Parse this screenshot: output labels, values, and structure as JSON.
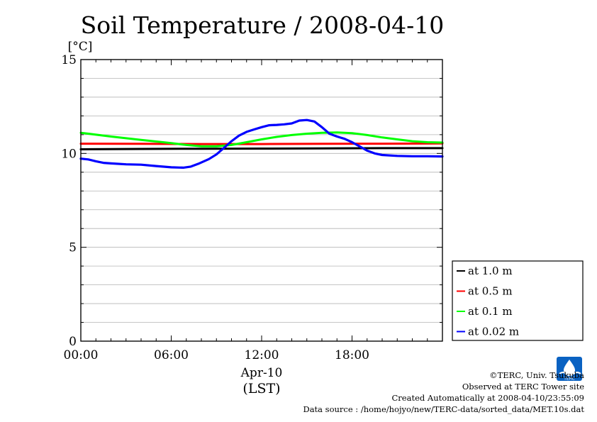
{
  "chart_data": {
    "type": "line",
    "title": "Soil Temperature / 2008-04-10",
    "ylabel": "[°C]",
    "xlabel": "Apr-10",
    "xlabel_sub": "(LST)",
    "xlim": [
      0,
      24
    ],
    "ylim": [
      0,
      15
    ],
    "x_ticks": [
      {
        "value": 0,
        "label": "00:00"
      },
      {
        "value": 6,
        "label": "06:00"
      },
      {
        "value": 12,
        "label": "12:00"
      },
      {
        "value": 18,
        "label": "18:00"
      }
    ],
    "y_ticks": [
      {
        "value": 0,
        "label": "0"
      },
      {
        "value": 5,
        "label": "5"
      },
      {
        "value": 10,
        "label": "10"
      },
      {
        "value": 15,
        "label": "15"
      }
    ],
    "grid": true,
    "legend_position": "right, lower",
    "series": [
      {
        "name": "at 1.0 m",
        "color": "#000000",
        "points": [
          [
            0,
            10.22
          ],
          [
            4,
            10.24
          ],
          [
            8,
            10.25
          ],
          [
            12,
            10.26
          ],
          [
            16,
            10.27
          ],
          [
            20,
            10.28
          ],
          [
            24,
            10.28
          ]
        ]
      },
      {
        "name": "at 0.5 m",
        "color": "#ff0000",
        "points": [
          [
            0,
            10.52
          ],
          [
            4,
            10.51
          ],
          [
            8,
            10.5
          ],
          [
            12,
            10.5
          ],
          [
            16,
            10.51
          ],
          [
            20,
            10.52
          ],
          [
            24,
            10.53
          ]
        ]
      },
      {
        "name": "at 0.1 m",
        "color": "#00ff00",
        "points": [
          [
            0,
            11.1
          ],
          [
            2,
            10.9
          ],
          [
            4,
            10.72
          ],
          [
            6,
            10.55
          ],
          [
            7,
            10.45
          ],
          [
            8,
            10.38
          ],
          [
            9,
            10.38
          ],
          [
            10,
            10.45
          ],
          [
            11,
            10.6
          ],
          [
            12,
            10.75
          ],
          [
            13,
            10.88
          ],
          [
            14,
            10.98
          ],
          [
            15,
            11.05
          ],
          [
            16,
            11.1
          ],
          [
            17,
            11.12
          ],
          [
            18,
            11.08
          ],
          [
            19,
            10.98
          ],
          [
            20,
            10.85
          ],
          [
            21,
            10.75
          ],
          [
            22,
            10.65
          ],
          [
            23,
            10.6
          ],
          [
            24,
            10.58
          ]
        ]
      },
      {
        "name": "at 0.02 m",
        "color": "#0000ff",
        "points": [
          [
            0,
            9.72
          ],
          [
            0.5,
            9.68
          ],
          [
            1,
            9.58
          ],
          [
            1.5,
            9.5
          ],
          [
            2,
            9.47
          ],
          [
            3,
            9.42
          ],
          [
            4,
            9.4
          ],
          [
            5,
            9.33
          ],
          [
            6,
            9.26
          ],
          [
            6.8,
            9.24
          ],
          [
            7.3,
            9.3
          ],
          [
            7.8,
            9.45
          ],
          [
            8.5,
            9.7
          ],
          [
            9,
            9.95
          ],
          [
            9.5,
            10.3
          ],
          [
            10,
            10.65
          ],
          [
            10.5,
            10.95
          ],
          [
            11,
            11.15
          ],
          [
            11.5,
            11.28
          ],
          [
            12,
            11.4
          ],
          [
            12.5,
            11.5
          ],
          [
            13,
            11.52
          ],
          [
            13.5,
            11.55
          ],
          [
            14,
            11.6
          ],
          [
            14.5,
            11.75
          ],
          [
            15,
            11.78
          ],
          [
            15.5,
            11.7
          ],
          [
            16,
            11.4
          ],
          [
            16.5,
            11.05
          ],
          [
            17,
            10.9
          ],
          [
            17.5,
            10.78
          ],
          [
            18,
            10.6
          ],
          [
            18.5,
            10.38
          ],
          [
            19,
            10.15
          ],
          [
            19.5,
            10.0
          ],
          [
            20,
            9.92
          ],
          [
            21,
            9.87
          ],
          [
            22,
            9.85
          ],
          [
            23,
            9.85
          ],
          [
            24,
            9.84
          ]
        ]
      }
    ]
  },
  "footer": {
    "copyright": "©TERC, Univ. Tsukuba",
    "site": "Observed at TERC Tower site",
    "created": "Created Automatically at 2008-04-10/23:55:09",
    "source": "Data source : /home/hojyo/new/TERC-data/sorted_data/MET.10s.dat"
  },
  "logo": {
    "icon": "terc-logo-icon",
    "text": "TERC",
    "color": "#0a62c2"
  }
}
